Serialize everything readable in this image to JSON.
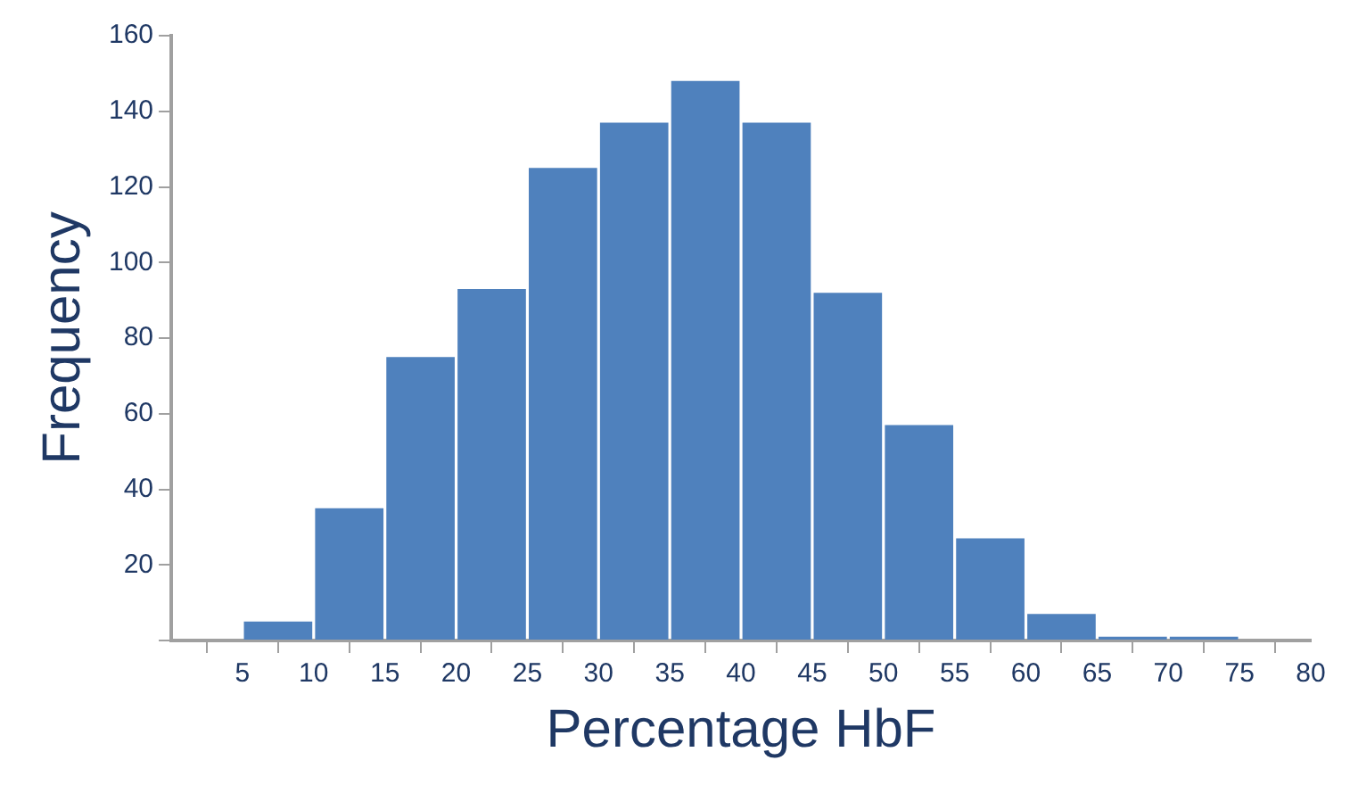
{
  "chart_data": {
    "type": "histogram",
    "xlabel": "Percentage HbF",
    "ylabel": "Frequency",
    "bins": [
      5,
      10,
      15,
      20,
      25,
      30,
      35,
      40,
      45,
      50,
      55,
      60,
      65,
      70,
      75
    ],
    "values": [
      5,
      35,
      75,
      93,
      125,
      137,
      148,
      137,
      92,
      57,
      27,
      7,
      1,
      1
    ],
    "color": "#4f81bd",
    "xlim": [
      0,
      80
    ],
    "xticks": [
      {
        "value": 0,
        "label": null
      },
      5,
      10,
      15,
      20,
      25,
      30,
      35,
      40,
      45,
      50,
      55,
      60,
      65,
      70,
      75,
      80
    ],
    "ylim": [
      0,
      160
    ],
    "yticks": [
      {
        "value": 0,
        "label": null
      },
      20,
      40,
      60,
      80,
      100,
      120,
      140,
      160
    ],
    "grid": false,
    "legend": false
  }
}
